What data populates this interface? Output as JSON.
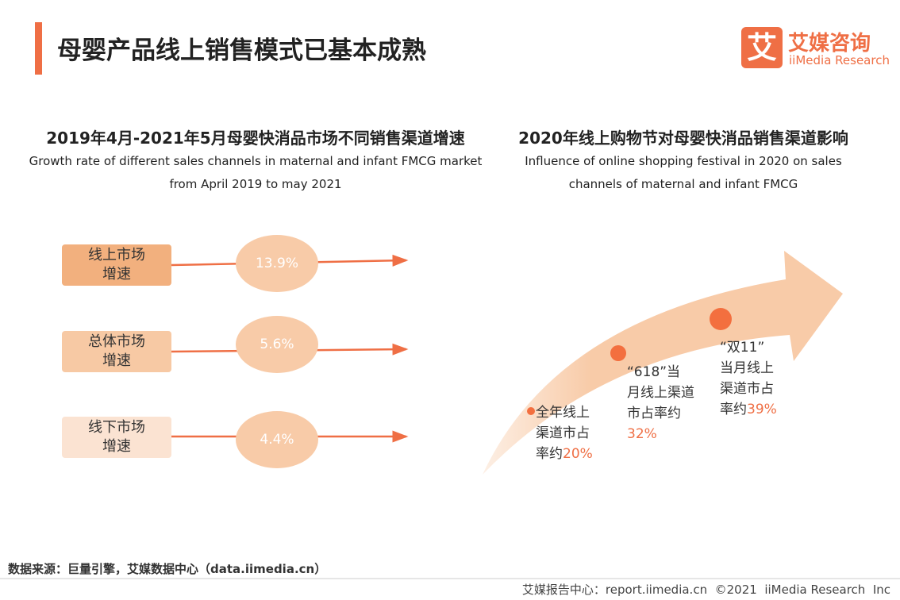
{
  "header": {
    "title": "母婴产品线上销售模式已基本成熟",
    "logo_mark": "艾",
    "logo_cn": "艾媒咨询",
    "logo_en": "iiMedia Research"
  },
  "left": {
    "title_cn": "2019年4月-2021年5月母婴快消品市场不同销售渠道增速",
    "title_en": [
      "Growth rate of different sales channels in maternal and infant FMCG market",
      "from April 2019 to may 2021"
    ],
    "rows": [
      {
        "label": [
          "线上市场",
          "增速"
        ],
        "value": "13.9%"
      },
      {
        "label": [
          "总体市场",
          "增速"
        ],
        "value": "5.6%"
      },
      {
        "label": [
          "线下市场",
          "增速"
        ],
        "value": "4.4%"
      }
    ]
  },
  "right": {
    "title_cn": "2020年线上购物节对母婴快消品销售渠道影响",
    "title_en": [
      "Influence of online shopping festival in 2020 on sales",
      "channels of maternal and infant FMCG"
    ],
    "points": [
      {
        "text": [
          "全年线上",
          "渠道市占",
          "率约"
        ],
        "value": "20%"
      },
      {
        "text": [
          "“618”当",
          "月线上渠道",
          "市占率约"
        ],
        "value": "32%"
      },
      {
        "text": [
          "“双11”",
          "当月线上",
          "渠道市占",
          "率约"
        ],
        "value": "39%"
      }
    ]
  },
  "footer": {
    "source": "数据来源：巨量引擎，艾媒数据中心（data.iimedia.cn）",
    "copyright": "艾媒报告中心：report.iimedia.cn  ©2021  iiMedia Research  Inc"
  }
}
